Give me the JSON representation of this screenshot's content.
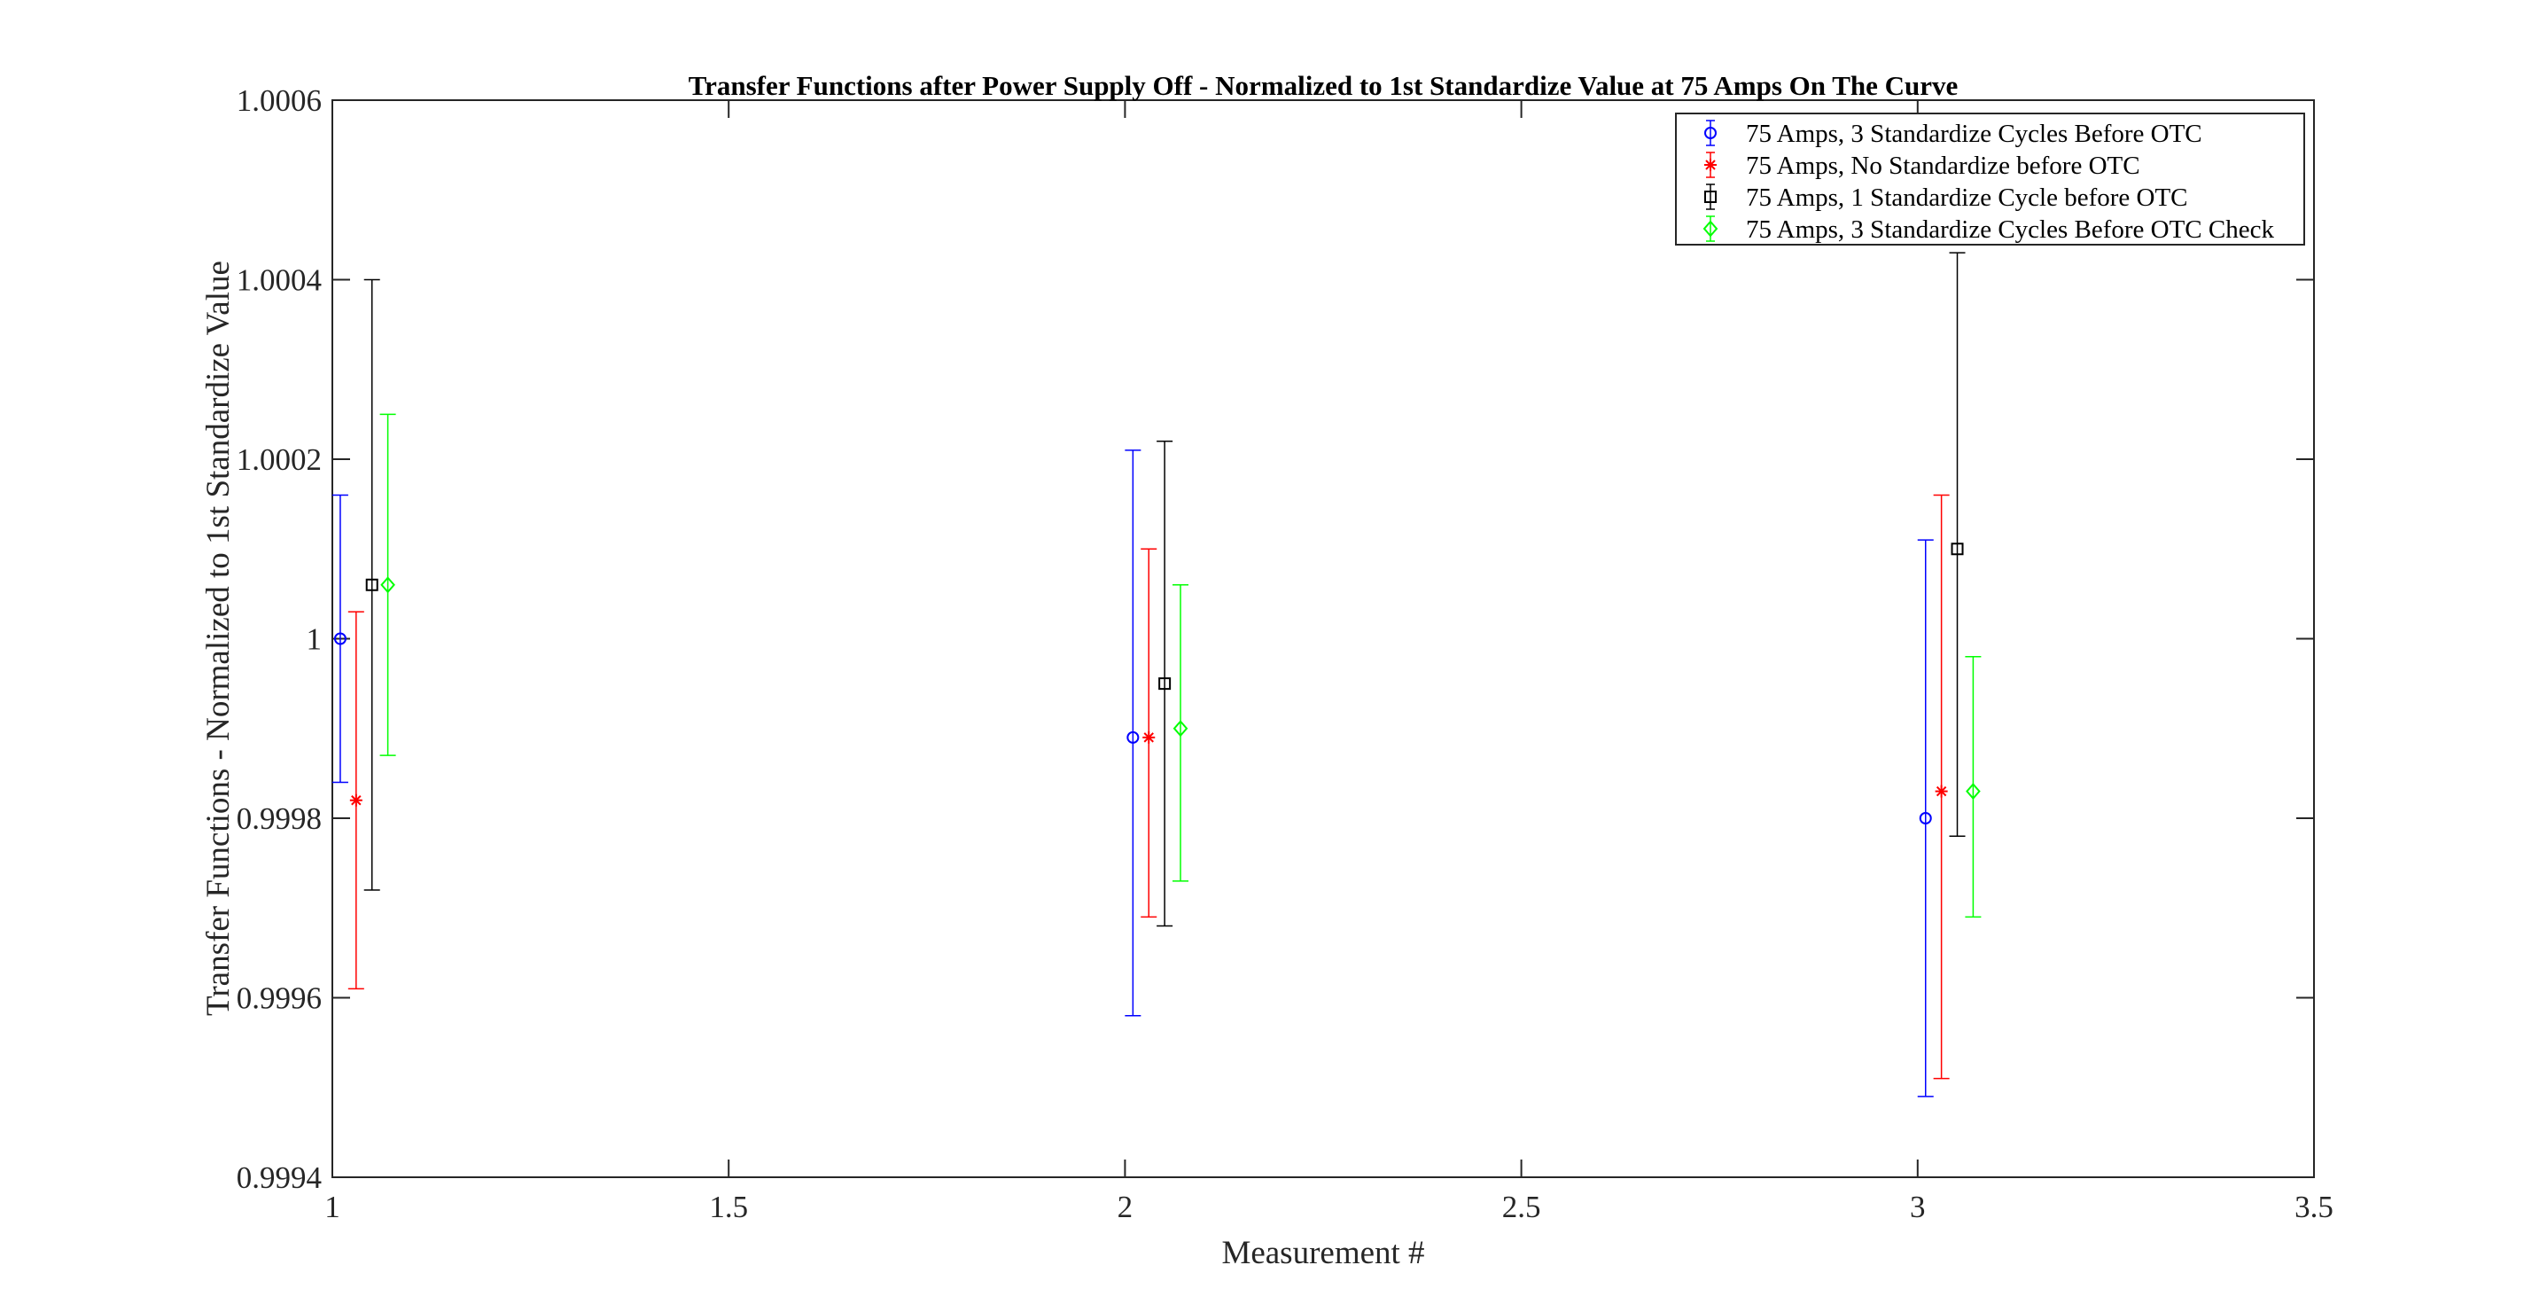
{
  "chart_data": {
    "type": "scatter",
    "title": "Transfer Functions after Power Supply Off - Normalized to 1st Standardize Value at 75 Amps On The Curve",
    "xlabel": "Measurement #",
    "ylabel": "Transfer Functions - Normalized to 1st Standardize Value",
    "xlim": [
      1,
      3.5
    ],
    "ylim": [
      0.9994,
      1.0006
    ],
    "xticks": [
      1,
      1.5,
      2,
      2.5,
      3,
      3.5
    ],
    "xtick_labels": [
      "1",
      "1.5",
      "2",
      "2.5",
      "3",
      "3.5"
    ],
    "yticks": [
      0.9994,
      0.9996,
      0.9998,
      1.0,
      1.0002,
      1.0004,
      1.0006
    ],
    "ytick_labels": [
      "0.9994",
      "0.9996",
      "0.9998",
      "1",
      "1.0002",
      "1.0004",
      "1.0006"
    ],
    "grid": false,
    "legend_position": "top-right",
    "series": [
      {
        "name": "75 Amps, 3 Standardize Cycles Before OTC",
        "color": "#0000ff",
        "marker": "circle",
        "points": [
          {
            "x": 1.01,
            "y": 1.0,
            "err_low": 0.99984,
            "err_high": 1.00016
          },
          {
            "x": 2.01,
            "y": 0.99989,
            "err_low": 0.99958,
            "err_high": 1.00021
          },
          {
            "x": 3.01,
            "y": 0.9998,
            "err_low": 0.99949,
            "err_high": 1.00011
          }
        ]
      },
      {
        "name": "75 Amps, No Standardize before OTC",
        "color": "#ff0000",
        "marker": "asterisk",
        "points": [
          {
            "x": 1.03,
            "y": 0.99982,
            "err_low": 0.99961,
            "err_high": 1.00003
          },
          {
            "x": 2.03,
            "y": 0.99989,
            "err_low": 0.99969,
            "err_high": 1.0001
          },
          {
            "x": 3.03,
            "y": 0.99983,
            "err_low": 0.99951,
            "err_high": 1.00016
          }
        ]
      },
      {
        "name": "75 Amps, 1 Standardize Cycle before OTC",
        "color": "#000000",
        "marker": "square",
        "points": [
          {
            "x": 1.05,
            "y": 1.00006,
            "err_low": 0.99972,
            "err_high": 1.0004
          },
          {
            "x": 2.05,
            "y": 0.99995,
            "err_low": 0.99968,
            "err_high": 1.00022
          },
          {
            "x": 3.05,
            "y": 1.0001,
            "err_low": 0.99978,
            "err_high": 1.00043
          }
        ]
      },
      {
        "name": "75 Amps, 3 Standardize Cycles Before OTC Check",
        "color": "#00ff00",
        "marker": "diamond",
        "points": [
          {
            "x": 1.07,
            "y": 1.00006,
            "err_low": 0.99987,
            "err_high": 1.00025
          },
          {
            "x": 2.07,
            "y": 0.9999,
            "err_low": 0.99973,
            "err_high": 1.00006
          },
          {
            "x": 3.07,
            "y": 0.99983,
            "err_low": 0.99969,
            "err_high": 0.99998
          }
        ]
      }
    ]
  }
}
